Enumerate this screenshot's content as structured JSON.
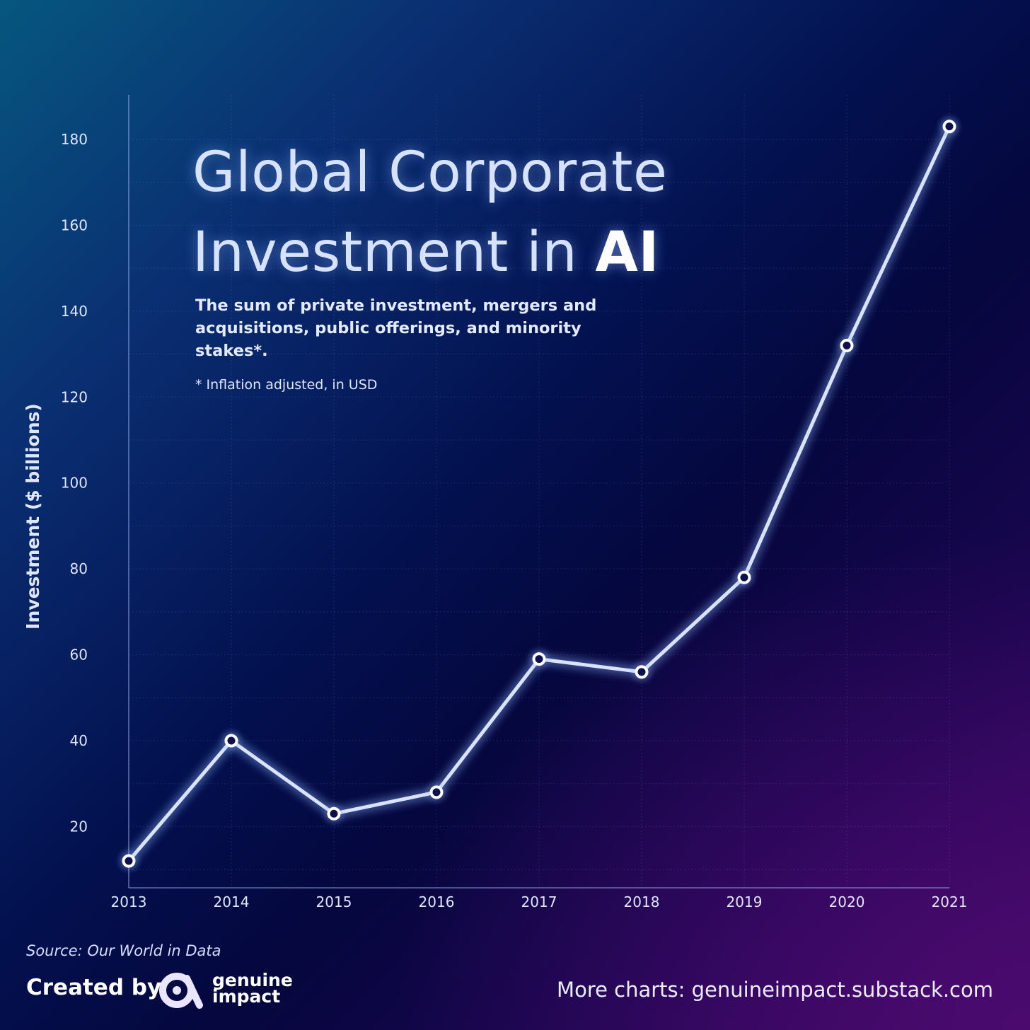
{
  "header": {
    "title_line1": "Global Corporate",
    "title_line2_prefix": "Investment in ",
    "title_accent": "AI",
    "subtitle": "The sum of private investment, mergers and acquisitions, public offerings, and minority stakes*.",
    "footnote": "* Inflation adjusted, in USD"
  },
  "footer": {
    "source": "Source: Our World in Data",
    "created_by": "Created by",
    "logo_line1": "genuine",
    "logo_line2": "impact",
    "more_charts": "More charts: genuineimpact.substack.com"
  },
  "colors": {
    "line": "#d9e3ff",
    "background_top_left": "#06577f",
    "background_bottom_right": "#3c0864"
  },
  "chart_data": {
    "type": "line",
    "title": "Global Corporate Investment in AI",
    "xlabel": "",
    "ylabel": "Investment ($ billions)",
    "x": [
      "2013",
      "2014",
      "2015",
      "2016",
      "2017",
      "2018",
      "2019",
      "2020",
      "2021"
    ],
    "values": [
      12,
      40,
      23,
      28,
      59,
      56,
      78,
      132,
      183
    ],
    "yticks": [
      20,
      40,
      60,
      80,
      100,
      120,
      140,
      160,
      180
    ],
    "ylim": [
      0,
      186
    ],
    "grid": true,
    "legend": "none"
  }
}
